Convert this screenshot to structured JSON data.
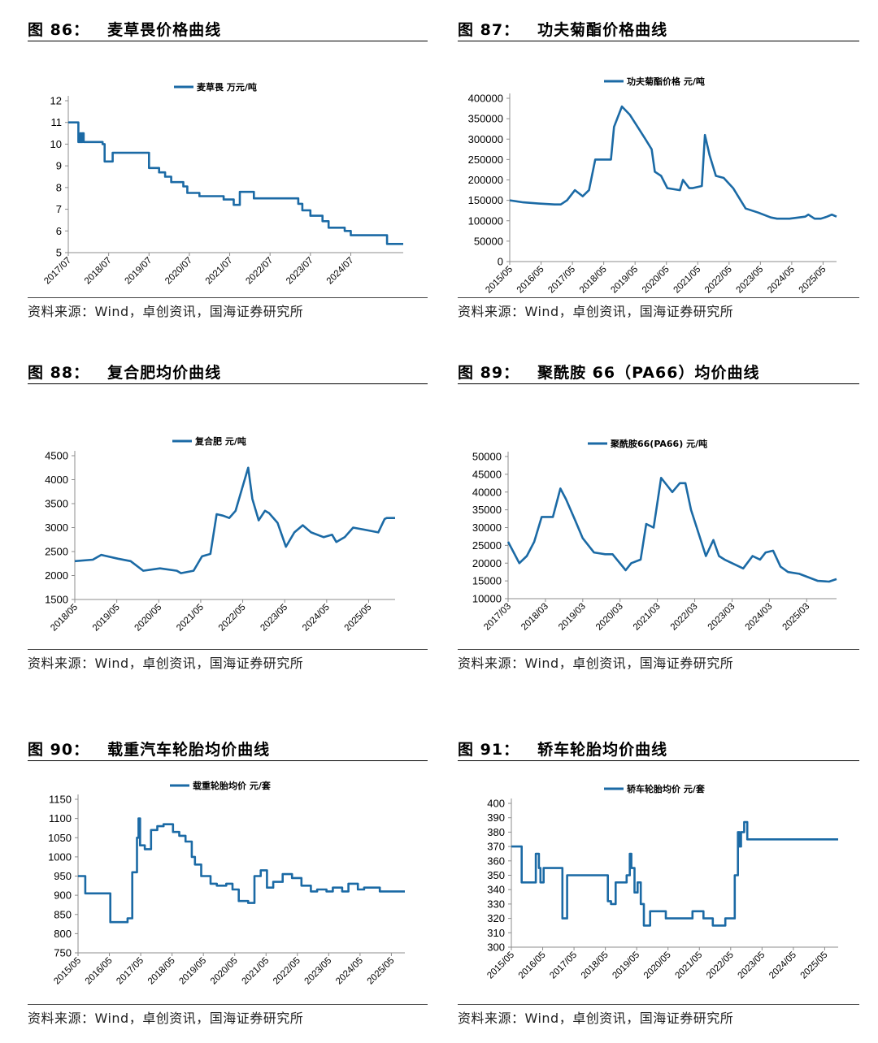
{
  "colors": {
    "series": "#1b6aa5",
    "axis": "#8c8c8c",
    "text": "#000000",
    "rule": "#000000"
  },
  "source_text": "资料来源：Wind，卓创资讯，国海证券研究所",
  "chart_data": [
    {
      "id": "c86",
      "type": "line",
      "step": true,
      "figure_label": "图 86：",
      "title": "麦草畏价格曲线",
      "legend": "麦草畏  万元/吨",
      "ylim": [
        5,
        12
      ],
      "yticks": [
        5,
        6,
        7,
        8,
        9,
        10,
        11,
        12
      ],
      "xlim": [
        2017.5,
        2025.8
      ],
      "xticks": [
        [
          2017.5,
          "2017/07"
        ],
        [
          2018.5,
          "2018/07"
        ],
        [
          2019.5,
          "2019/07"
        ],
        [
          2020.5,
          "2020/07"
        ],
        [
          2021.5,
          "2021/07"
        ],
        [
          2022.5,
          "2022/07"
        ],
        [
          2023.5,
          "2023/07"
        ],
        [
          2024.5,
          "2024/07"
        ]
      ],
      "x": [
        2017.5,
        2017.75,
        2017.8,
        2017.82,
        2017.85,
        2017.88,
        2018.2,
        2018.35,
        2018.4,
        2018.55,
        2018.6,
        2019.5,
        2019.75,
        2019.9,
        2020.05,
        2020.35,
        2020.45,
        2020.75,
        2021.35,
        2021.6,
        2021.75,
        2022.1,
        2022.5,
        2023.1,
        2023.2,
        2023.3,
        2023.5,
        2023.8,
        2023.95,
        2024.35,
        2024.5,
        2025.15,
        2025.4,
        2025.8
      ],
      "y": [
        11.0,
        10.1,
        10.5,
        10.1,
        10.5,
        10.1,
        10.1,
        10.0,
        9.2,
        9.2,
        9.6,
        8.9,
        8.7,
        8.5,
        8.25,
        8.05,
        7.75,
        7.6,
        7.45,
        7.2,
        7.8,
        7.5,
        7.5,
        7.5,
        7.25,
        6.95,
        6.7,
        6.45,
        6.15,
        6.0,
        5.8,
        5.8,
        5.4,
        5.4
      ]
    },
    {
      "id": "c87",
      "type": "line",
      "step": false,
      "figure_label": "图 87：",
      "title": "功夫菊酯价格曲线",
      "legend": "功夫菊酯价格  元/吨",
      "ylim": [
        0,
        400000
      ],
      "yticks": [
        0,
        50000,
        100000,
        150000,
        200000,
        250000,
        300000,
        350000,
        400000
      ],
      "xlim": [
        2015.37,
        2025.8
      ],
      "xticks": [
        [
          2015.37,
          "2015/05"
        ],
        [
          2016.37,
          "2016/05"
        ],
        [
          2017.37,
          "2017/05"
        ],
        [
          2018.37,
          "2018/05"
        ],
        [
          2019.37,
          "2019/05"
        ],
        [
          2020.37,
          "2020/05"
        ],
        [
          2021.37,
          "2021/05"
        ],
        [
          2022.37,
          "2022/05"
        ],
        [
          2023.37,
          "2023/05"
        ],
        [
          2024.37,
          "2024/05"
        ],
        [
          2025.37,
          "2025/05"
        ]
      ],
      "x": [
        2015.37,
        2015.8,
        2016.3,
        2016.8,
        2017.0,
        2017.2,
        2017.45,
        2017.7,
        2017.9,
        2018.1,
        2018.25,
        2018.45,
        2018.6,
        2018.7,
        2018.8,
        2018.95,
        2019.2,
        2019.45,
        2019.7,
        2019.9,
        2020.0,
        2020.2,
        2020.4,
        2020.8,
        2020.9,
        2021.1,
        2021.2,
        2021.5,
        2021.6,
        2021.75,
        2021.95,
        2022.2,
        2022.5,
        2022.9,
        2023.1,
        2023.3,
        2023.7,
        2023.9,
        2024.3,
        2024.8,
        2024.9,
        2025.1,
        2025.3,
        2025.5,
        2025.65,
        2025.8
      ],
      "y": [
        150000,
        145000,
        142000,
        140000,
        140000,
        150000,
        175000,
        160000,
        175000,
        250000,
        250000,
        250000,
        250000,
        330000,
        350000,
        380000,
        360000,
        330000,
        300000,
        275000,
        220000,
        210000,
        180000,
        175000,
        200000,
        180000,
        180000,
        185000,
        310000,
        260000,
        210000,
        205000,
        180000,
        130000,
        125000,
        120000,
        108000,
        105000,
        105000,
        110000,
        115000,
        105000,
        105000,
        110000,
        115000,
        110000
      ]
    },
    {
      "id": "c88",
      "type": "line",
      "step": false,
      "figure_label": "图 88：",
      "title": "复合肥均价曲线",
      "legend": "复合肥    元/吨",
      "ylim": [
        1500,
        4500
      ],
      "yticks": [
        1500,
        2000,
        2500,
        3000,
        3500,
        4000,
        4500
      ],
      "xlim": [
        2018.37,
        2026.0
      ],
      "xticks": [
        [
          2018.37,
          "2018/05"
        ],
        [
          2019.37,
          "2019/05"
        ],
        [
          2020.37,
          "2020/05"
        ],
        [
          2021.37,
          "2021/05"
        ],
        [
          2022.37,
          "2022/05"
        ],
        [
          2023.37,
          "2023/05"
        ],
        [
          2024.37,
          "2024/05"
        ],
        [
          2025.37,
          "2025/05"
        ]
      ],
      "x": [
        2018.37,
        2018.8,
        2019.0,
        2019.4,
        2019.7,
        2020.0,
        2020.4,
        2020.8,
        2020.9,
        2021.2,
        2021.4,
        2021.6,
        2021.75,
        2021.9,
        2022.05,
        2022.2,
        2022.35,
        2022.5,
        2022.6,
        2022.75,
        2022.9,
        2023.0,
        2023.2,
        2023.4,
        2023.6,
        2023.8,
        2024.0,
        2024.3,
        2024.5,
        2024.6,
        2024.8,
        2025.0,
        2025.3,
        2025.6,
        2025.75,
        2025.8,
        2026.0
      ],
      "y": [
        2300,
        2330,
        2430,
        2350,
        2300,
        2100,
        2150,
        2100,
        2050,
        2100,
        2400,
        2450,
        3280,
        3250,
        3200,
        3350,
        3800,
        4250,
        3600,
        3150,
        3350,
        3300,
        3100,
        2600,
        2900,
        3050,
        2900,
        2800,
        2850,
        2700,
        2800,
        3000,
        2950,
        2900,
        3180,
        3200,
        3200
      ]
    },
    {
      "id": "c89",
      "type": "line",
      "step": false,
      "figure_label": "图 89：",
      "title": "聚酰胺 66（PA66）均价曲线",
      "legend": "聚酰胺66(PA66)  元/吨",
      "ylim": [
        10000,
        50000
      ],
      "yticks": [
        10000,
        15000,
        20000,
        25000,
        30000,
        35000,
        40000,
        45000,
        50000
      ],
      "xlim": [
        2017.2,
        2026.0
      ],
      "xticks": [
        [
          2017.2,
          "2017/03"
        ],
        [
          2018.2,
          "2018/03"
        ],
        [
          2019.2,
          "2019/03"
        ],
        [
          2020.2,
          "2020/03"
        ],
        [
          2021.2,
          "2021/03"
        ],
        [
          2022.2,
          "2022/03"
        ],
        [
          2023.2,
          "2023/03"
        ],
        [
          2024.2,
          "2024/03"
        ],
        [
          2025.2,
          "2025/03"
        ]
      ],
      "x": [
        2017.2,
        2017.5,
        2017.7,
        2017.9,
        2018.1,
        2018.4,
        2018.6,
        2018.75,
        2019.0,
        2019.2,
        2019.5,
        2019.8,
        2020.0,
        2020.35,
        2020.5,
        2020.75,
        2020.9,
        2021.1,
        2021.3,
        2021.45,
        2021.6,
        2021.8,
        2021.95,
        2022.1,
        2022.5,
        2022.7,
        2022.85,
        2023.0,
        2023.2,
        2023.5,
        2023.75,
        2023.95,
        2024.1,
        2024.3,
        2024.5,
        2024.7,
        2025.0,
        2025.5,
        2025.8,
        2026.0
      ],
      "y": [
        26000,
        20000,
        22000,
        26000,
        33000,
        33000,
        41000,
        38000,
        32000,
        27000,
        23000,
        22500,
        22500,
        18000,
        20000,
        21000,
        31000,
        30000,
        44000,
        42000,
        40000,
        42500,
        42500,
        35000,
        22000,
        26500,
        22000,
        21000,
        20000,
        18500,
        22000,
        21000,
        23000,
        23500,
        19000,
        17500,
        17000,
        15000,
        14800,
        15500
      ]
    },
    {
      "id": "c90",
      "type": "line",
      "step": true,
      "figure_label": "图 90：",
      "title": "载重汽车轮胎均价曲线",
      "legend": "载重轮胎均价  元/套",
      "ylim": [
        750,
        1150
      ],
      "yticks": [
        750,
        800,
        850,
        900,
        950,
        1000,
        1050,
        1100,
        1150
      ],
      "xlim": [
        2015.37,
        2025.8
      ],
      "xticks": [
        [
          2015.37,
          "2015/05"
        ],
        [
          2016.37,
          "2016/05"
        ],
        [
          2017.37,
          "2017/05"
        ],
        [
          2018.37,
          "2018/05"
        ],
        [
          2019.37,
          "2019/05"
        ],
        [
          2020.37,
          "2020/05"
        ],
        [
          2021.37,
          "2021/05"
        ],
        [
          2022.37,
          "2022/05"
        ],
        [
          2023.37,
          "2023/05"
        ],
        [
          2024.37,
          "2024/05"
        ],
        [
          2025.37,
          "2025/05"
        ]
      ],
      "x": [
        2015.37,
        2015.6,
        2016.2,
        2016.4,
        2016.8,
        2016.95,
        2017.1,
        2017.25,
        2017.3,
        2017.35,
        2017.5,
        2017.7,
        2017.9,
        2018.1,
        2018.4,
        2018.6,
        2018.8,
        2019.0,
        2019.1,
        2019.3,
        2019.6,
        2019.8,
        2020.1,
        2020.3,
        2020.5,
        2020.8,
        2021.0,
        2021.2,
        2021.4,
        2021.6,
        2021.9,
        2022.2,
        2022.5,
        2022.8,
        2023.0,
        2023.3,
        2023.5,
        2023.8,
        2024.0,
        2024.3,
        2024.5,
        2024.8,
        2025.0,
        2025.8
      ],
      "y": [
        950,
        905,
        905,
        830,
        830,
        840,
        960,
        1050,
        1100,
        1030,
        1020,
        1070,
        1080,
        1085,
        1065,
        1055,
        1040,
        1000,
        980,
        950,
        930,
        925,
        930,
        915,
        885,
        880,
        950,
        965,
        920,
        935,
        955,
        945,
        925,
        910,
        915,
        910,
        920,
        910,
        930,
        915,
        920,
        920,
        910,
        910
      ]
    },
    {
      "id": "c91",
      "type": "line",
      "step": true,
      "figure_label": "图 91：",
      "title": "轿车轮胎均价曲线",
      "legend": "轿车轮胎均价  元/套",
      "ylim": [
        300,
        400
      ],
      "yticks": [
        300,
        310,
        320,
        330,
        340,
        350,
        360,
        370,
        380,
        390,
        400
      ],
      "xlim": [
        2015.37,
        2025.8
      ],
      "xticks": [
        [
          2015.37,
          "2015/05"
        ],
        [
          2016.37,
          "2016/05"
        ],
        [
          2017.37,
          "2017/05"
        ],
        [
          2018.37,
          "2018/05"
        ],
        [
          2019.37,
          "2019/05"
        ],
        [
          2020.37,
          "2020/05"
        ],
        [
          2021.37,
          "2021/05"
        ],
        [
          2022.37,
          "2022/05"
        ],
        [
          2023.37,
          "2023/05"
        ],
        [
          2024.37,
          "2024/05"
        ],
        [
          2025.37,
          "2025/05"
        ]
      ],
      "x": [
        2015.37,
        2015.7,
        2016.1,
        2016.15,
        2016.25,
        2016.3,
        2016.4,
        2016.6,
        2016.95,
        2017.0,
        2017.15,
        2017.2,
        2017.6,
        2017.8,
        2018.3,
        2018.45,
        2018.55,
        2018.7,
        2019.0,
        2019.05,
        2019.15,
        2019.2,
        2019.3,
        2019.4,
        2019.5,
        2019.6,
        2019.8,
        2020.0,
        2020.3,
        2020.7,
        2021.0,
        2021.15,
        2021.3,
        2021.5,
        2021.8,
        2022.0,
        2022.2,
        2022.4,
        2022.5,
        2022.6,
        2022.65,
        2022.7,
        2022.8,
        2022.9,
        2025.8
      ],
      "y": [
        370,
        345,
        345,
        365,
        355,
        345,
        355,
        355,
        355,
        320,
        350,
        350,
        350,
        350,
        350,
        332,
        330,
        345,
        345,
        350,
        365,
        355,
        338,
        345,
        330,
        315,
        325,
        325,
        320,
        320,
        320,
        325,
        325,
        320,
        315,
        315,
        320,
        320,
        350,
        380,
        370,
        380,
        387,
        375,
        375
      ]
    }
  ]
}
